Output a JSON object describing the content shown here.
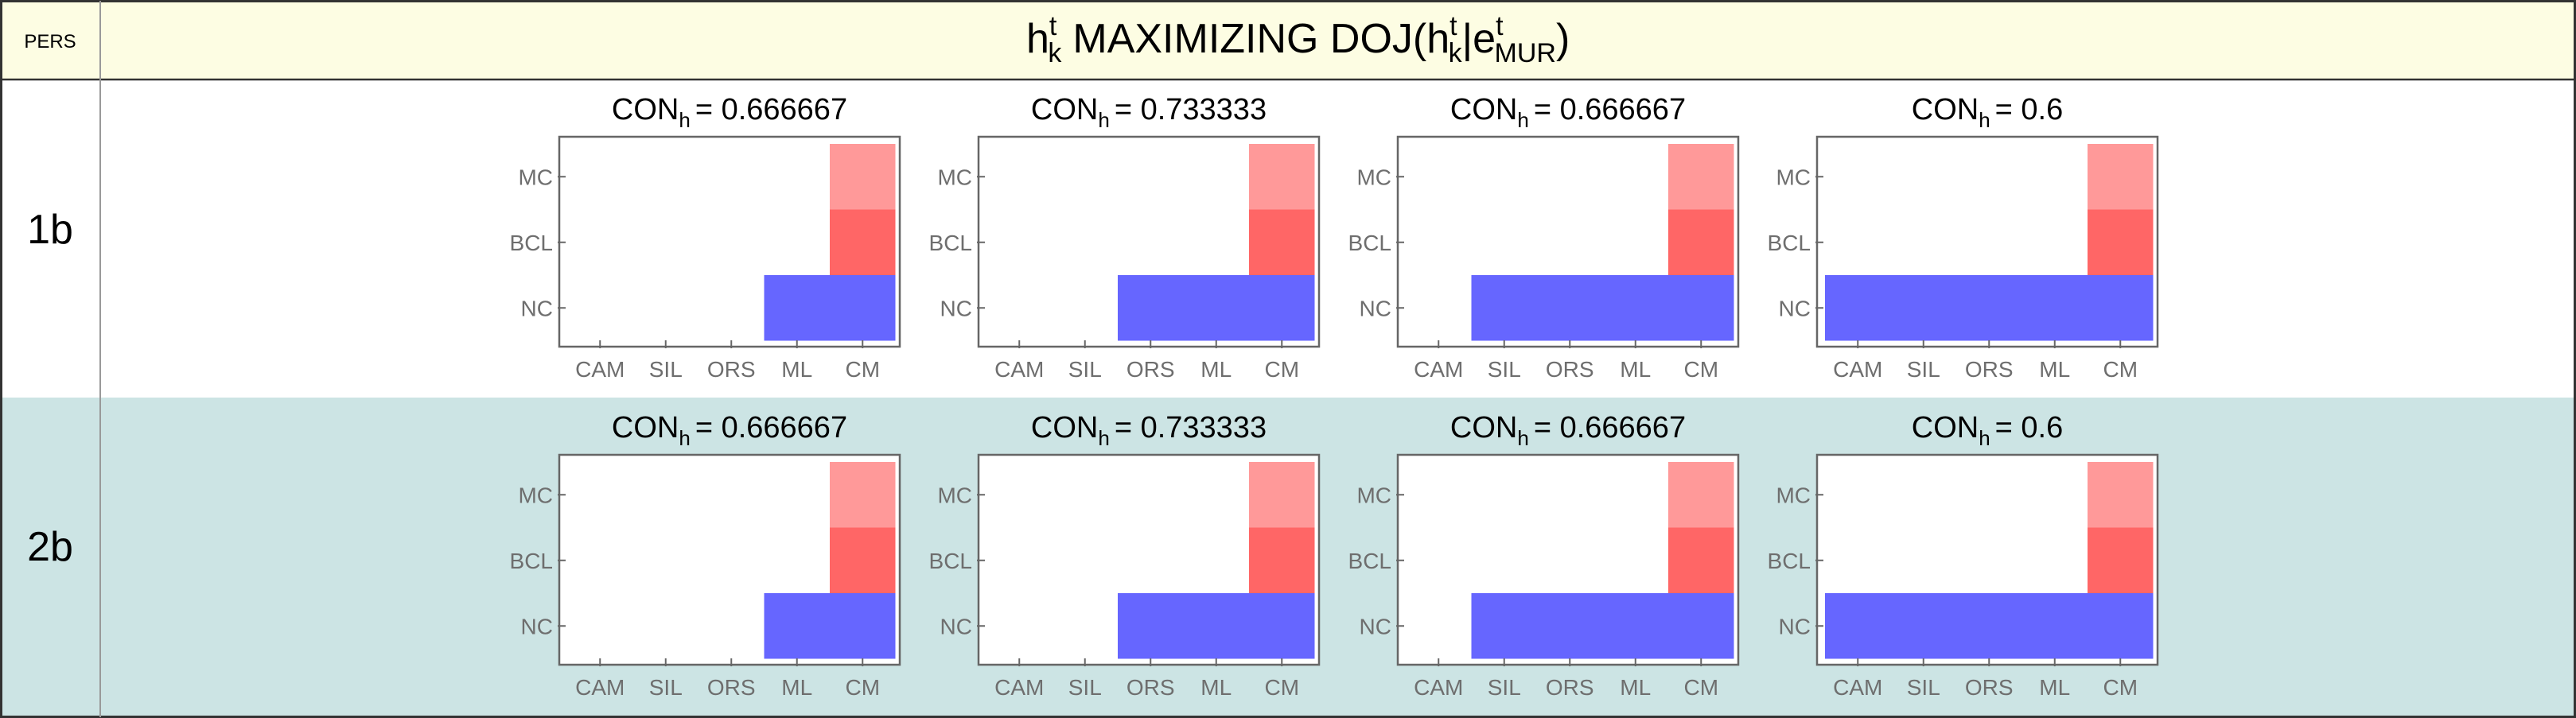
{
  "header": {
    "left_label": "PERS",
    "title": {
      "h": "h",
      "t1": "t",
      "k1": "k",
      "maximizing": "MAXIMIZING DOJ(",
      "h2": "h",
      "t2": "t",
      "k2": "k",
      "bar": "|e",
      "t3": "t",
      "mur": "MUR",
      "close": ")"
    }
  },
  "colors": {
    "header_bg": "#fdfde3",
    "row2_bg": "#cce4e4",
    "nc_blue": "#6666ff",
    "bcl_red": "#ff6666",
    "mc_pink": "#ff9999",
    "axis": "#666666",
    "tick_text": "#6e6e6e"
  },
  "rows": [
    {
      "label": "1b",
      "panels": [
        {
          "con_prefix": "CON",
          "con_sub": "h",
          "con_value": "= 0.666667",
          "nc_start": 3
        },
        {
          "con_prefix": "CON",
          "con_sub": "h",
          "con_value": "= 0.733333",
          "nc_start": 2
        },
        {
          "con_prefix": "CON",
          "con_sub": "h",
          "con_value": "= 0.666667",
          "nc_start": 1
        },
        {
          "con_prefix": "CON",
          "con_sub": "h",
          "con_value": "= 0.6",
          "nc_start": 0
        }
      ]
    },
    {
      "label": "2b",
      "panels": [
        {
          "con_prefix": "CON",
          "con_sub": "h",
          "con_value": "= 0.666667",
          "nc_start": 3
        },
        {
          "con_prefix": "CON",
          "con_sub": "h",
          "con_value": "= 0.733333",
          "nc_start": 2
        },
        {
          "con_prefix": "CON",
          "con_sub": "h",
          "con_value": "= 0.666667",
          "nc_start": 1
        },
        {
          "con_prefix": "CON",
          "con_sub": "h",
          "con_value": "= 0.6",
          "nc_start": 0
        }
      ]
    }
  ],
  "x_categories": [
    "CAM",
    "SIL",
    "ORS",
    "ML",
    "CM"
  ],
  "y_categories": [
    "MC",
    "BCL",
    "NC"
  ]
}
